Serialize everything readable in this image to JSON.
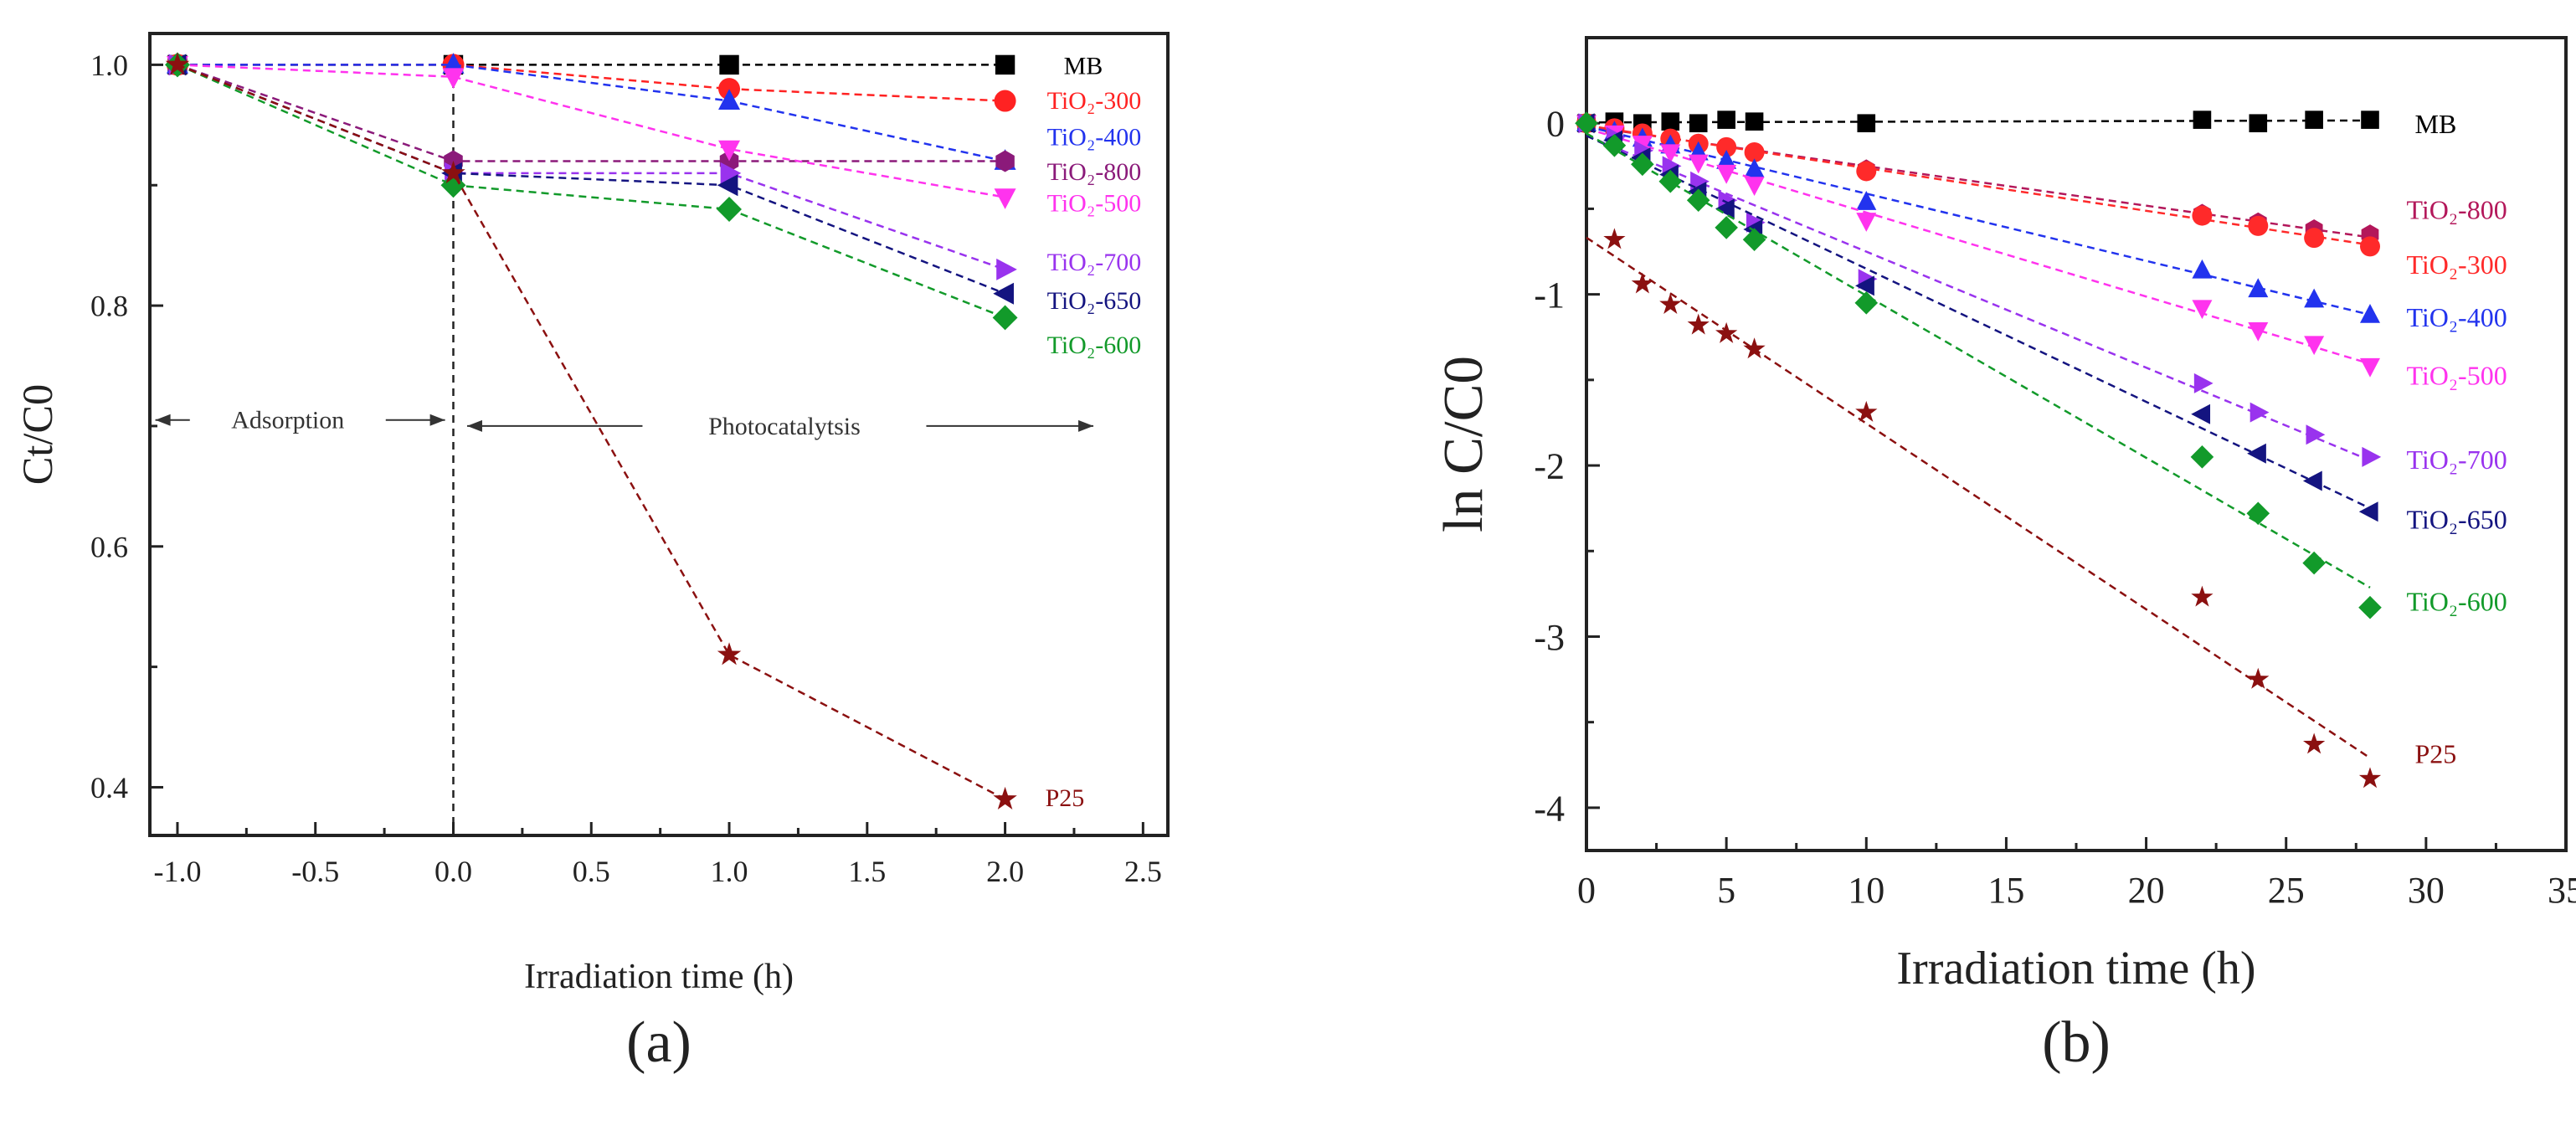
{
  "chart_data": [
    {
      "type": "line",
      "panel_label": "(a)",
      "xlabel": "Irradiation time (h)",
      "ylabel": "Ct/C0",
      "xlim": [
        -1.1,
        2.59
      ],
      "ylim": [
        0.36,
        1.026
      ],
      "xticks": [
        -1.0,
        -0.5,
        0.0,
        0.5,
        1.0,
        1.5,
        2.0,
        2.5
      ],
      "xtick_labels": [
        "-1.0",
        "-0.5",
        "0.0",
        "0.5",
        "1.0",
        "1.5",
        "2.0",
        "2.5"
      ],
      "yticks": [
        0.4,
        0.6,
        0.8,
        1.0
      ],
      "ytick_labels": [
        "0.4",
        "0.6",
        "0.8",
        "1.0"
      ],
      "vline_x": 0,
      "annotations": [
        {
          "text": "Adsorption",
          "x_from": -1.08,
          "x_to": -0.03,
          "y": 0.705,
          "text_x": -0.6
        },
        {
          "text": "Photocatalytsis",
          "x_from": 0.05,
          "x_to": 2.32,
          "y": 0.7,
          "text_x": 1.2
        }
      ],
      "x": [
        -1,
        0,
        1,
        2
      ],
      "series": [
        {
          "name": "MB",
          "label": "MB",
          "color": "#000000",
          "marker": "square",
          "values": [
            1.0,
            1.0,
            1.0,
            1.0
          ],
          "label_y": 1.0
        },
        {
          "name": "TiO2-300",
          "label": "TiO₂-300",
          "color": "#ff2222",
          "marker": "circle",
          "values": [
            1.0,
            1.0,
            0.98,
            0.97
          ],
          "label_y": 0.971
        },
        {
          "name": "TiO2-400",
          "label": "TiO₂-400",
          "color": "#2233ee",
          "marker": "triangle-up",
          "values": [
            1.0,
            1.0,
            0.97,
            0.92
          ],
          "label_y": 0.941
        },
        {
          "name": "TiO2-800",
          "label": "TiO₂-800",
          "color": "#8b1a7a",
          "marker": "hexagon",
          "values": [
            1.0,
            0.92,
            0.92,
            0.92
          ],
          "label_y": 0.912
        },
        {
          "name": "TiO2-500",
          "label": "TiO₂-500",
          "color": "#ff33ee",
          "marker": "triangle-down",
          "values": [
            1.0,
            0.99,
            0.93,
            0.89
          ],
          "label_y": 0.886
        },
        {
          "name": "TiO2-700",
          "label": "TiO₂-700",
          "color": "#9933ee",
          "marker": "triangle-right",
          "values": [
            1.0,
            0.91,
            0.91,
            0.83
          ],
          "label_y": 0.837
        },
        {
          "name": "TiO2-650",
          "label": "TiO₂-650",
          "color": "#141480",
          "marker": "triangle-left",
          "values": [
            1.0,
            0.91,
            0.9,
            0.81
          ],
          "label_y": 0.805
        },
        {
          "name": "TiO2-600",
          "label": "TiO₂-600",
          "color": "#129a2a",
          "marker": "diamond",
          "values": [
            1.0,
            0.9,
            0.88,
            0.79
          ],
          "label_y": 0.768
        },
        {
          "name": "P25",
          "label": "P25",
          "color": "#8b1010",
          "marker": "star",
          "values": [
            1.0,
            0.91,
            0.51,
            0.39
          ],
          "label_y": 0.392
        }
      ]
    },
    {
      "type": "scatter",
      "panel_label": "(b)",
      "xlabel": "Irradiation time (h)",
      "ylabel": "ln C/C0",
      "xlim": [
        0,
        35
      ],
      "ylim": [
        -4.25,
        0.5
      ],
      "xticks": [
        0,
        5,
        10,
        15,
        20,
        25,
        30,
        35
      ],
      "xtick_labels": [
        "0",
        "5",
        "10",
        "15",
        "20",
        "25",
        "30",
        "35"
      ],
      "yticks": [
        0,
        -1,
        -2,
        -3,
        -4
      ],
      "ytick_labels": [
        "0",
        "-1",
        "-2",
        "-3",
        "-4"
      ],
      "fit": "linear dashed",
      "x": [
        0,
        1,
        2,
        3,
        4,
        5,
        6,
        10,
        22,
        24,
        26,
        28
      ],
      "series": [
        {
          "name": "MB",
          "label": "MB",
          "color": "#000000",
          "marker": "square",
          "values": [
            0,
            0.01,
            0,
            0.01,
            0,
            0.02,
            0.01,
            0,
            0.02,
            0,
            0.02,
            0.02
          ],
          "label_y": 0,
          "label_x": 29.6
        },
        {
          "name": "TiO2-800",
          "label": "TiO₂-800",
          "color": "#b3175a",
          "marker": "hexagon",
          "values": [
            0,
            -0.03,
            -0.06,
            -0.09,
            -0.12,
            -0.14,
            -0.17,
            -0.27,
            -0.53,
            -0.58,
            -0.62,
            -0.65
          ],
          "label_y": -0.5,
          "label_x": 29.3
        },
        {
          "name": "TiO2-300",
          "label": "TiO₂-300",
          "color": "#ff2a2a",
          "marker": "circle",
          "values": [
            0,
            -0.03,
            -0.06,
            -0.09,
            -0.12,
            -0.14,
            -0.17,
            -0.28,
            -0.54,
            -0.6,
            -0.67,
            -0.72
          ],
          "label_y": -0.82,
          "label_x": 29.3
        },
        {
          "name": "TiO2-400",
          "label": "TiO₂-400",
          "color": "#2233ee",
          "marker": "triangle-up",
          "values": [
            0,
            -0.05,
            -0.09,
            -0.13,
            -0.17,
            -0.22,
            -0.27,
            -0.46,
            -0.86,
            -0.97,
            -1.03,
            -1.12
          ],
          "label_y": -1.13,
          "label_x": 29.3
        },
        {
          "name": "TiO2-500",
          "label": "TiO₂-500",
          "color": "#ff33ee",
          "marker": "triangle-down",
          "values": [
            0,
            -0.06,
            -0.12,
            -0.17,
            -0.23,
            -0.29,
            -0.36,
            -0.57,
            -1.08,
            -1.21,
            -1.29,
            -1.42
          ],
          "label_y": -1.47,
          "label_x": 29.3
        },
        {
          "name": "TiO2-700",
          "label": "TiO₂-700",
          "color": "#9933ee",
          "marker": "triangle-right",
          "values": [
            0,
            -0.08,
            -0.16,
            -0.25,
            -0.34,
            -0.45,
            -0.58,
            -0.91,
            -1.52,
            -1.69,
            -1.82,
            -1.95
          ],
          "label_y": -1.96,
          "label_x": 29.3
        },
        {
          "name": "TiO2-650",
          "label": "TiO₂-650",
          "color": "#141480",
          "marker": "triangle-left",
          "values": [
            0,
            -0.1,
            -0.2,
            -0.3,
            -0.4,
            -0.5,
            -0.62,
            -0.95,
            -1.7,
            -1.93,
            -2.09,
            -2.27
          ],
          "label_y": -2.31,
          "label_x": 29.3
        },
        {
          "name": "TiO2-600",
          "label": "TiO₂-600",
          "color": "#129a2a",
          "marker": "diamond",
          "values": [
            0,
            -0.13,
            -0.24,
            -0.34,
            -0.45,
            -0.61,
            -0.68,
            -1.05,
            -1.95,
            -2.28,
            -2.57,
            -2.83
          ],
          "label_y": -2.79,
          "label_x": 29.3
        },
        {
          "name": "P25",
          "label": "P25",
          "color": "#8b1010",
          "marker": "star",
          "values": [
            null,
            -0.68,
            -0.94,
            -1.06,
            -1.18,
            -1.23,
            -1.32,
            -1.69,
            -2.77,
            -3.25,
            -3.63,
            -3.83
          ],
          "label_y": -3.68,
          "label_x": 29.6
        }
      ]
    }
  ]
}
